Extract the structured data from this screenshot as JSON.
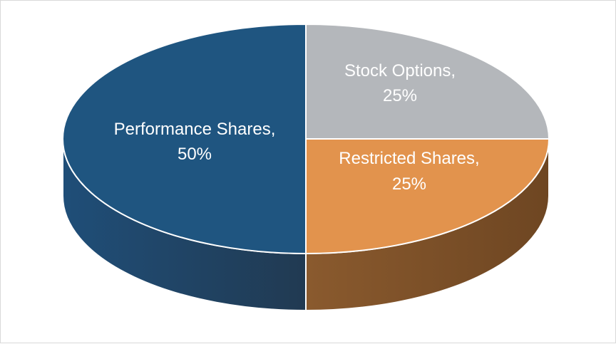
{
  "chart_data": {
    "type": "pie",
    "title": "",
    "style": "3d",
    "slices": [
      {
        "name": "Performance Shares",
        "value": 50,
        "label_line1": "Performance Shares,",
        "label_line2": "50%",
        "color": "#1f5580",
        "side_color": "#1c3f5e",
        "text_color": "#ffffff"
      },
      {
        "name": "Stock Options",
        "value": 25,
        "label_line1": "Stock Options,",
        "label_line2": "25%",
        "color": "#b4b7bb",
        "side_color": "#8f9296",
        "text_color": "#ffffff"
      },
      {
        "name": "Restricted Shares",
        "value": 25,
        "label_line1": "Restricted Shares,",
        "label_line2": "25%",
        "color": "#e2934d",
        "side_color": "#7e5128",
        "text_color": "#ffffff"
      }
    ]
  }
}
